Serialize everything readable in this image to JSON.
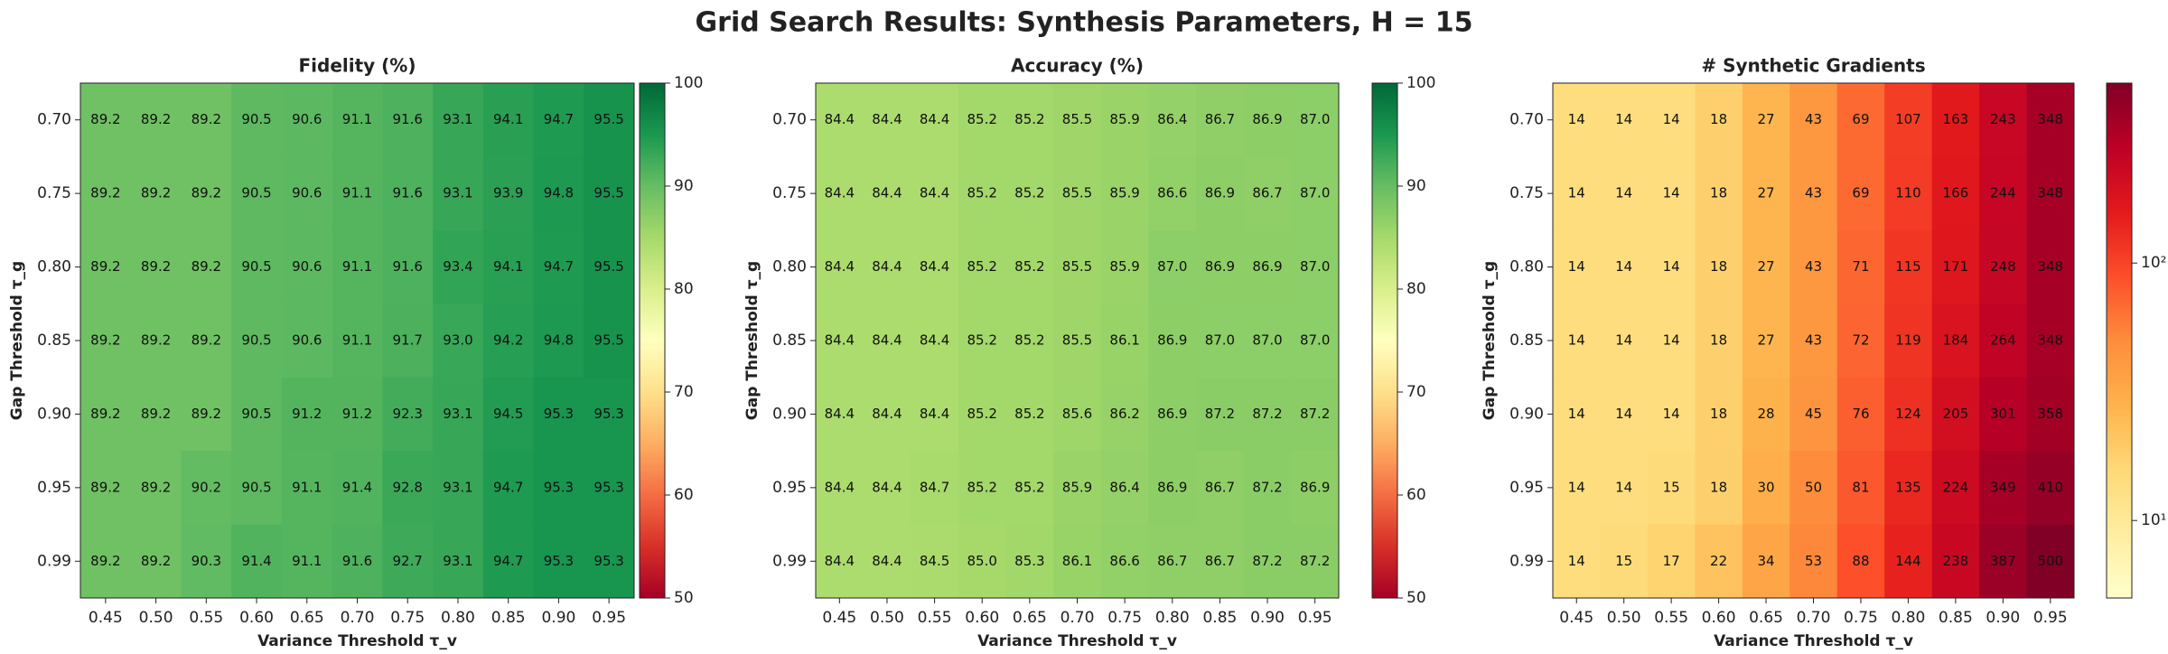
{
  "title": "Grid Search Results: Synthesis Parameters, H = 15",
  "chart_data": [
    {
      "type": "heatmap",
      "title": "Fidelity (%)",
      "xlabel": "Variance Threshold τ_v",
      "ylabel": "Gap Threshold τ_g",
      "x_categories": [
        "0.45",
        "0.50",
        "0.55",
        "0.60",
        "0.65",
        "0.70",
        "0.75",
        "0.80",
        "0.85",
        "0.90",
        "0.95"
      ],
      "y_categories": [
        "0.70",
        "0.75",
        "0.80",
        "0.85",
        "0.90",
        "0.95",
        "0.99"
      ],
      "values": [
        [
          89.2,
          89.2,
          89.2,
          90.5,
          90.6,
          91.1,
          91.6,
          93.1,
          94.1,
          94.7,
          95.5
        ],
        [
          89.2,
          89.2,
          89.2,
          90.5,
          90.6,
          91.1,
          91.6,
          93.1,
          93.9,
          94.8,
          95.5
        ],
        [
          89.2,
          89.2,
          89.2,
          90.5,
          90.6,
          91.1,
          91.6,
          93.4,
          94.1,
          94.7,
          95.5
        ],
        [
          89.2,
          89.2,
          89.2,
          90.5,
          90.6,
          91.1,
          91.7,
          93.0,
          94.2,
          94.8,
          95.5
        ],
        [
          89.2,
          89.2,
          89.2,
          90.5,
          91.2,
          91.2,
          92.3,
          93.1,
          94.5,
          95.3,
          95.3
        ],
        [
          89.2,
          89.2,
          90.2,
          90.5,
          91.1,
          91.4,
          92.8,
          93.1,
          94.7,
          95.3,
          95.3
        ],
        [
          89.2,
          89.2,
          90.3,
          91.4,
          91.1,
          91.6,
          92.7,
          93.1,
          94.7,
          95.3,
          95.3
        ]
      ],
      "value_labels": [
        [
          "89.2",
          "89.2",
          "89.2",
          "90.5",
          "90.6",
          "91.1",
          "91.6",
          "93.1",
          "94.1",
          "94.7",
          "95.5"
        ],
        [
          "89.2",
          "89.2",
          "89.2",
          "90.5",
          "90.6",
          "91.1",
          "91.6",
          "93.1",
          "93.9",
          "94.8",
          "95.5"
        ],
        [
          "89.2",
          "89.2",
          "89.2",
          "90.5",
          "90.6",
          "91.1",
          "91.6",
          "93.4",
          "94.1",
          "94.7",
          "95.5"
        ],
        [
          "89.2",
          "89.2",
          "89.2",
          "90.5",
          "90.6",
          "91.1",
          "91.7",
          "93.0",
          "94.2",
          "94.8",
          "95.5"
        ],
        [
          "89.2",
          "89.2",
          "89.2",
          "90.5",
          "91.2",
          "91.2",
          "92.3",
          "93.1",
          "94.5",
          "95.3",
          "95.3"
        ],
        [
          "89.2",
          "89.2",
          "90.2",
          "90.5",
          "91.1",
          "91.4",
          "92.8",
          "93.1",
          "94.7",
          "95.3",
          "95.3"
        ],
        [
          "89.2",
          "89.2",
          "90.3",
          "91.4",
          "91.1",
          "91.6",
          "92.7",
          "93.1",
          "94.7",
          "95.3",
          "95.3"
        ]
      ],
      "colormap": "RdYlGn",
      "zlim": [
        50,
        100
      ],
      "zticks": [
        50,
        60,
        70,
        80,
        90,
        100
      ],
      "log": false
    },
    {
      "type": "heatmap",
      "title": "Accuracy (%)",
      "xlabel": "Variance Threshold τ_v",
      "ylabel": "Gap Threshold τ_g",
      "x_categories": [
        "0.45",
        "0.50",
        "0.55",
        "0.60",
        "0.65",
        "0.70",
        "0.75",
        "0.80",
        "0.85",
        "0.90",
        "0.95"
      ],
      "y_categories": [
        "0.70",
        "0.75",
        "0.80",
        "0.85",
        "0.90",
        "0.95",
        "0.99"
      ],
      "values": [
        [
          84.4,
          84.4,
          84.4,
          85.2,
          85.2,
          85.5,
          85.9,
          86.4,
          86.7,
          86.9,
          87.0
        ],
        [
          84.4,
          84.4,
          84.4,
          85.2,
          85.2,
          85.5,
          85.9,
          86.6,
          86.9,
          86.7,
          87.0
        ],
        [
          84.4,
          84.4,
          84.4,
          85.2,
          85.2,
          85.5,
          85.9,
          87.0,
          86.9,
          86.9,
          87.0
        ],
        [
          84.4,
          84.4,
          84.4,
          85.2,
          85.2,
          85.5,
          86.1,
          86.9,
          87.0,
          87.0,
          87.0
        ],
        [
          84.4,
          84.4,
          84.4,
          85.2,
          85.2,
          85.6,
          86.2,
          86.9,
          87.2,
          87.2,
          87.2
        ],
        [
          84.4,
          84.4,
          84.7,
          85.2,
          85.2,
          85.9,
          86.4,
          86.9,
          86.7,
          87.2,
          86.9
        ],
        [
          84.4,
          84.4,
          84.5,
          85.0,
          85.3,
          86.1,
          86.6,
          86.7,
          86.7,
          87.2,
          87.2
        ]
      ],
      "value_labels": [
        [
          "84.4",
          "84.4",
          "84.4",
          "85.2",
          "85.2",
          "85.5",
          "85.9",
          "86.4",
          "86.7",
          "86.9",
          "87.0"
        ],
        [
          "84.4",
          "84.4",
          "84.4",
          "85.2",
          "85.2",
          "85.5",
          "85.9",
          "86.6",
          "86.9",
          "86.7",
          "87.0"
        ],
        [
          "84.4",
          "84.4",
          "84.4",
          "85.2",
          "85.2",
          "85.5",
          "85.9",
          "87.0",
          "86.9",
          "86.9",
          "87.0"
        ],
        [
          "84.4",
          "84.4",
          "84.4",
          "85.2",
          "85.2",
          "85.5",
          "86.1",
          "86.9",
          "87.0",
          "87.0",
          "87.0"
        ],
        [
          "84.4",
          "84.4",
          "84.4",
          "85.2",
          "85.2",
          "85.6",
          "86.2",
          "86.9",
          "87.2",
          "87.2",
          "87.2"
        ],
        [
          "84.4",
          "84.4",
          "84.7",
          "85.2",
          "85.2",
          "85.9",
          "86.4",
          "86.9",
          "86.7",
          "87.2",
          "86.9"
        ],
        [
          "84.4",
          "84.4",
          "84.5",
          "85.0",
          "85.3",
          "86.1",
          "86.6",
          "86.7",
          "86.7",
          "87.2",
          "87.2"
        ]
      ],
      "colormap": "RdYlGn",
      "zlim": [
        50,
        100
      ],
      "zticks": [
        50,
        60,
        70,
        80,
        90,
        100
      ],
      "log": false
    },
    {
      "type": "heatmap",
      "title": "# Synthetic Gradients",
      "xlabel": "Variance Threshold τ_v",
      "ylabel": "Gap Threshold τ_g",
      "x_categories": [
        "0.45",
        "0.50",
        "0.55",
        "0.60",
        "0.65",
        "0.70",
        "0.75",
        "0.80",
        "0.85",
        "0.90",
        "0.95"
      ],
      "y_categories": [
        "0.70",
        "0.75",
        "0.80",
        "0.85",
        "0.90",
        "0.95",
        "0.99"
      ],
      "values": [
        [
          14,
          14,
          14,
          18,
          27,
          43,
          69,
          107,
          163,
          243,
          348
        ],
        [
          14,
          14,
          14,
          18,
          27,
          43,
          69,
          110,
          166,
          244,
          348
        ],
        [
          14,
          14,
          14,
          18,
          27,
          43,
          71,
          115,
          171,
          248,
          348
        ],
        [
          14,
          14,
          14,
          18,
          27,
          43,
          72,
          119,
          184,
          264,
          348
        ],
        [
          14,
          14,
          14,
          18,
          28,
          45,
          76,
          124,
          205,
          301,
          358
        ],
        [
          14,
          14,
          15,
          18,
          30,
          50,
          81,
          135,
          224,
          349,
          410
        ],
        [
          14,
          15,
          17,
          22,
          34,
          53,
          88,
          144,
          238,
          387,
          500
        ]
      ],
      "colormap": "YlOrRd",
      "zlim": [
        5,
        500
      ],
      "zticks": [
        {
          "value": 10,
          "label": "10¹"
        },
        {
          "value": 100,
          "label": "10²"
        }
      ],
      "log": true
    }
  ]
}
